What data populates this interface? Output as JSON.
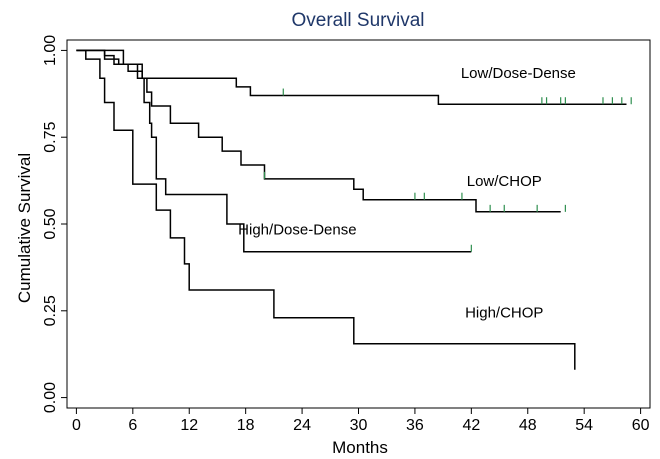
{
  "chart_data": {
    "type": "line",
    "title": "Overall Survival",
    "xlabel": "Months",
    "ylabel": "Cumulative Survival",
    "xlim": [
      -1,
      61
    ],
    "ylim": [
      -0.03,
      1.03
    ],
    "x_ticks": [
      0,
      6,
      12,
      18,
      24,
      30,
      36,
      42,
      48,
      54,
      60
    ],
    "x_tick_labels": [
      "0",
      "6",
      "12",
      "18",
      "24",
      "30",
      "36",
      "42",
      "48",
      "54",
      "60"
    ],
    "y_ticks": [
      0,
      0.25,
      0.5,
      0.75,
      1.0
    ],
    "y_tick_labels": [
      "0.00",
      "0.25",
      "0.50",
      "0.75",
      "1.00"
    ],
    "grid": false,
    "colors": {
      "title": "#1f3769",
      "line": "#000000",
      "censor": "#2f8f4f",
      "axis": "#000000"
    },
    "series": [
      {
        "name": "Low/Dose-Dense",
        "label_at": [
          47,
          0.92
        ],
        "steps": [
          [
            0,
            1.0
          ],
          [
            5,
            0.96
          ],
          [
            7,
            0.92
          ],
          [
            17,
            0.895
          ],
          [
            18.5,
            0.87
          ],
          [
            38.5,
            0.845
          ],
          [
            58.5,
            0.845
          ]
        ],
        "censored": [
          22,
          49.5,
          50,
          51.5,
          52,
          56,
          57,
          58,
          59
        ]
      },
      {
        "name": "Low/CHOP",
        "label_at": [
          45.5,
          0.61
        ],
        "steps": [
          [
            0,
            1.0
          ],
          [
            3,
            0.985
          ],
          [
            4,
            0.96
          ],
          [
            5.5,
            0.94
          ],
          [
            7,
            0.92
          ],
          [
            7.5,
            0.88
          ],
          [
            8,
            0.84
          ],
          [
            10,
            0.79
          ],
          [
            13,
            0.75
          ],
          [
            15.5,
            0.71
          ],
          [
            17.5,
            0.67
          ],
          [
            20,
            0.63
          ],
          [
            29.5,
            0.6
          ],
          [
            30.5,
            0.57
          ],
          [
            42.5,
            0.535
          ],
          [
            51.5,
            0.535
          ]
        ],
        "censored": [
          20,
          36,
          37,
          41,
          44,
          45.5,
          49,
          52
        ]
      },
      {
        "name": "High/Dose-Dense",
        "label_at": [
          23.5,
          0.47
        ],
        "steps": [
          [
            0,
            1.0
          ],
          [
            3,
            0.975
          ],
          [
            4.5,
            0.96
          ],
          [
            6.5,
            0.92
          ],
          [
            7.2,
            0.85
          ],
          [
            7.8,
            0.79
          ],
          [
            8,
            0.75
          ],
          [
            8.5,
            0.63
          ],
          [
            9.5,
            0.585
          ],
          [
            16,
            0.5
          ],
          [
            17.8,
            0.42
          ],
          [
            42,
            0.42
          ]
        ],
        "censored": [
          42
        ]
      },
      {
        "name": "High/CHOP",
        "label_at": [
          45.5,
          0.23
        ],
        "steps": [
          [
            0,
            1.0
          ],
          [
            1,
            0.975
          ],
          [
            2.5,
            0.92
          ],
          [
            3,
            0.85
          ],
          [
            4,
            0.77
          ],
          [
            6,
            0.615
          ],
          [
            8.5,
            0.54
          ],
          [
            10,
            0.46
          ],
          [
            11.5,
            0.385
          ],
          [
            12,
            0.31
          ],
          [
            21,
            0.23
          ],
          [
            29.5,
            0.155
          ],
          [
            53,
            0.155
          ],
          [
            53,
            0.08
          ]
        ],
        "censored": []
      }
    ]
  }
}
